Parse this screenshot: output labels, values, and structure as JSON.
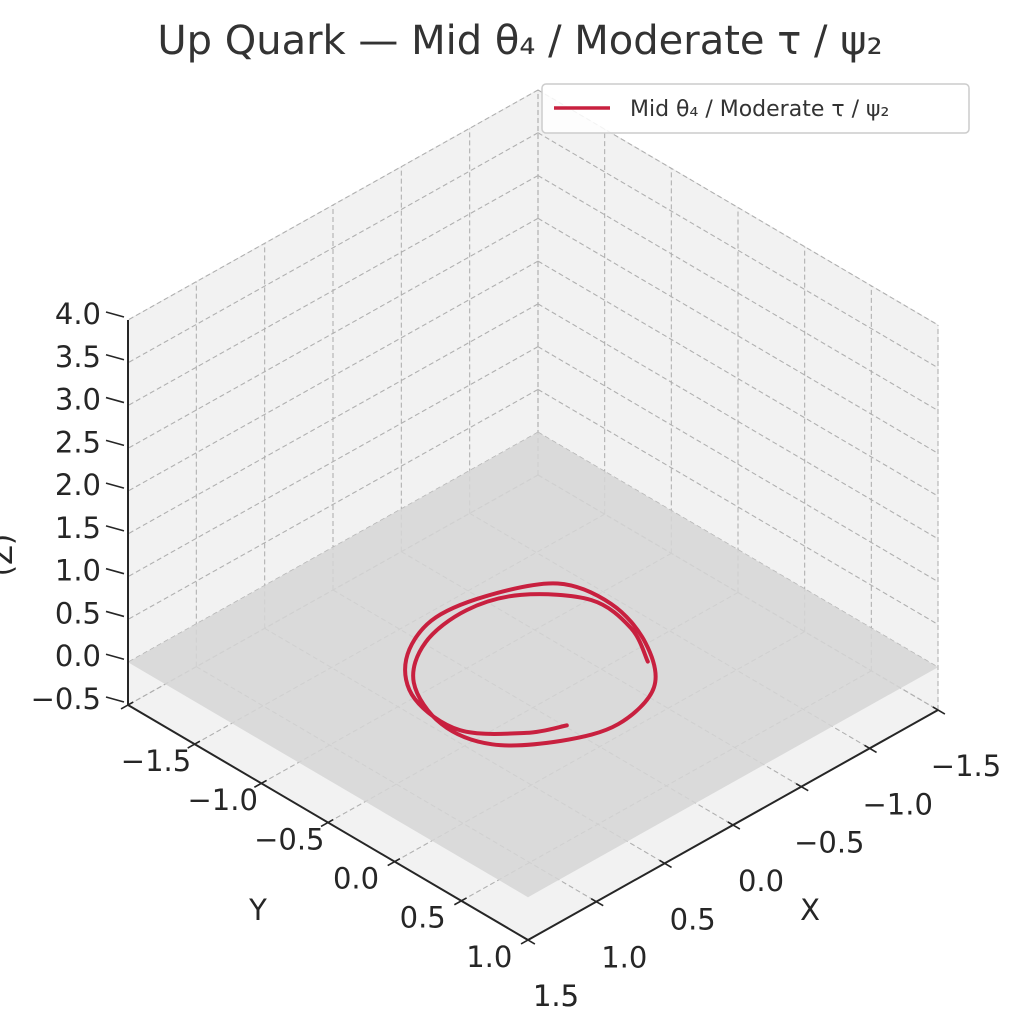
{
  "chart_data": {
    "type": "line",
    "projection": "3d",
    "title": "Up Quark — Mid θ₄ / Moderate τ / ψ₂",
    "xlabel": "X",
    "ylabel": "Y",
    "zlabel": "(Z)",
    "xlim": [
      -1.5,
      1.5
    ],
    "ylim": [
      -1.5,
      1.5
    ],
    "zlim": [
      -0.5,
      4.0
    ],
    "x_ticks": [
      "−1.5",
      "−1.0",
      "−0.5",
      "0.0",
      "0.5",
      "1.0",
      "1.5"
    ],
    "y_ticks": [
      "−1.5",
      "−1.0",
      "−0.5",
      "0.0",
      "0.5",
      "1.0",
      "1.5"
    ],
    "z_ticks": [
      "−0.5",
      "0.0",
      "0.5",
      "1.0",
      "1.5",
      "2.0",
      "2.5",
      "3.0",
      "3.5",
      "4.0"
    ],
    "grid": true,
    "legend_position": "top-right",
    "floor_plane_z": 0.0,
    "series": [
      {
        "name": "Mid θ₄ / Moderate τ / ψ₂",
        "color": "#c8203f",
        "x": [
          0.4,
          0.12,
          -0.21,
          -0.5,
          -0.6,
          -0.54,
          -0.32,
          0.05,
          0.37,
          0.6,
          0.7,
          0.59,
          0.27,
          -0.11,
          -0.44,
          -0.62,
          -0.66,
          -0.5,
          -0.21,
          0.16,
          0.42,
          0.52
        ],
        "y": [
          -0.45,
          -0.6,
          -0.63,
          -0.4,
          -0.1,
          0.26,
          0.56,
          0.72,
          0.66,
          0.38,
          0.06,
          -0.31,
          -0.56,
          -0.68,
          -0.61,
          -0.26,
          0.1,
          0.44,
          0.66,
          0.69,
          0.46,
          0.26
        ],
        "z": [
          0.0,
          0.0,
          0.0,
          0.0,
          0.0,
          0.0,
          0.0,
          0.0,
          0.0,
          0.0,
          0.0,
          0.0,
          0.0,
          0.0,
          0.0,
          0.0,
          0.0,
          0.0,
          0.0,
          0.0,
          0.0,
          0.0
        ]
      }
    ]
  },
  "colors": {
    "pane_face": "#f2f2f2",
    "pane_edge": "#ebebeb",
    "floor_plane": "#d6d6d6",
    "axis_line": "#262626",
    "legend_border": "#cccccc"
  }
}
